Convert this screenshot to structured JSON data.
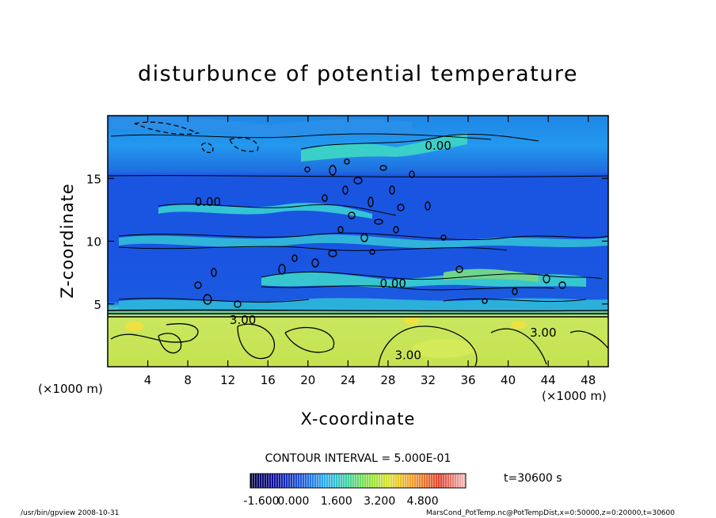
{
  "chart_data": {
    "type": "heatmap",
    "title": "disturbunce of potential temperature",
    "xlabel": "X-coordinate",
    "ylabel": "Z-coordinate",
    "x_unit": "(×1000 m)",
    "y_unit": "(×1000 m)",
    "xlim": [
      0,
      50
    ],
    "ylim": [
      0,
      20
    ],
    "x_ticks": [
      4,
      8,
      12,
      16,
      20,
      24,
      28,
      32,
      36,
      40,
      44,
      48
    ],
    "y_ticks": [
      5,
      10,
      15
    ],
    "contour_interval_text": "CONTOUR INTERVAL = 5.000E-01",
    "time_text": "t=30600 s",
    "contour_labels": [
      {
        "text": "0.00",
        "x": 10,
        "z": 12.8
      },
      {
        "text": "0.00",
        "x": 33,
        "z": 17.3
      },
      {
        "text": "0.00",
        "x": 28.5,
        "z": 6.3
      },
      {
        "text": "3.00",
        "x": 13.5,
        "z": 3.4
      },
      {
        "text": "3.00",
        "x": 30,
        "z": 0.6
      },
      {
        "text": "3.00",
        "x": 43.5,
        "z": 2.4
      }
    ],
    "colorbar": {
      "min": -1.6,
      "max": 6.4,
      "tick_values": [
        -1.6,
        0.0,
        1.6,
        3.2,
        4.8
      ],
      "tick_labels": [
        "-1.600",
        "0.000",
        "1.600",
        "3.200",
        "4.800"
      ]
    },
    "field_summary": [
      {
        "z_range": [
          0,
          4.3
        ],
        "value": 3.0
      },
      {
        "z_range": [
          4.3,
          5.5
        ],
        "value": 0.4
      },
      {
        "z_range": [
          5.5,
          15.3
        ],
        "value": -0.1
      },
      {
        "z_range": [
          15.3,
          20
        ],
        "value": 0.6
      }
    ]
  },
  "footer": {
    "left": "/usr/bin/gpview   2008-10-31",
    "right": "MarsCond_PotTemp.nc@PotTempDist,x=0:50000,z=0:20000,t=30600"
  }
}
